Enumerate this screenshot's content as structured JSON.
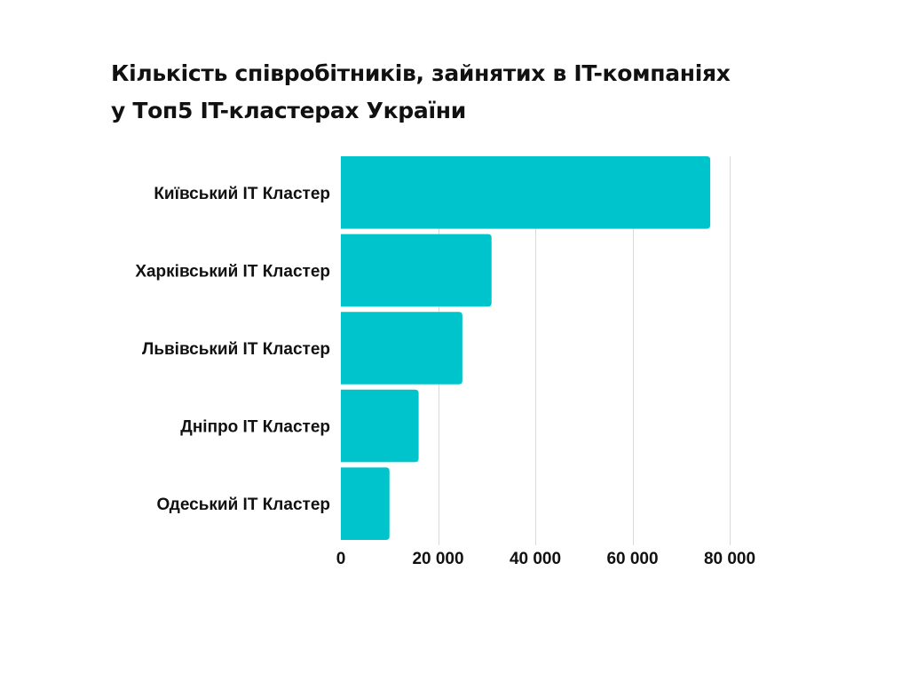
{
  "chart_data": {
    "type": "bar",
    "orientation": "horizontal",
    "title": "Кількість співробітників, зайнятих в IT-компаніях",
    "subtitle": "у Топ5 IT-кластерах України",
    "categories": [
      "Київський IT Кластер",
      "Харківський IT Кластер",
      "Львівський IT Кластер",
      "Дніпро IT Кластер",
      "Одеський IT Кластер"
    ],
    "values": [
      76000,
      31000,
      25000,
      16000,
      10000
    ],
    "xlim": [
      0,
      80000
    ],
    "x_ticks": [
      0,
      20000,
      40000,
      60000,
      80000
    ],
    "x_tick_labels": [
      "0",
      "20 000",
      "40 000",
      "60 000",
      "80 000"
    ],
    "bar_color": "#00C4CC",
    "grid": true
  }
}
